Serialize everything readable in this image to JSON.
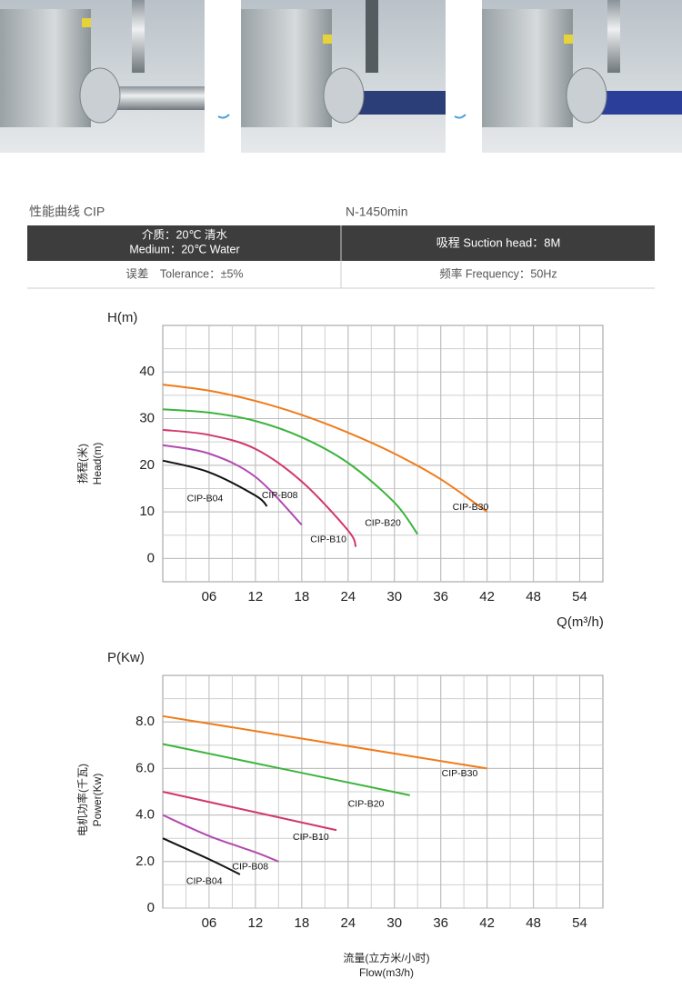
{
  "header": {
    "title": "性能曲线 CIP",
    "speed": "N-1450min"
  },
  "table": {
    "rows": [
      [
        [
          "介质：20℃ 清水",
          "Medium：20℃ Water"
        ],
        "吸程 Suction head：8M"
      ],
      [
        "误差　Tolerance：±5%",
        "频率 Frequency：50Hz"
      ]
    ]
  },
  "chart_data": [
    {
      "type": "line",
      "y_title": "H(m)",
      "y_label": [
        "扬程(米)",
        "Head(m)"
      ],
      "x_label": [
        "Q(m³/h)"
      ],
      "xlim": [
        0,
        57
      ],
      "ylim": [
        -5,
        50
      ],
      "xticks": [
        {
          "value": 6,
          "label": "06"
        },
        12,
        18,
        24,
        30,
        36,
        42,
        48,
        54
      ],
      "yticks": [
        0,
        10,
        20,
        30,
        40
      ],
      "grid": true,
      "series": [
        {
          "name": "CIP-B30",
          "color": "#f07b1a",
          "x": [
            0,
            6,
            12,
            18,
            24,
            30,
            36,
            42
          ],
          "values": [
            37.3,
            36,
            33.8,
            30.8,
            27,
            22.5,
            17,
            10
          ]
        },
        {
          "name": "CIP-B20",
          "color": "#3cb43c",
          "x": [
            0,
            6,
            12,
            18,
            24,
            30,
            33
          ],
          "values": [
            32,
            31.3,
            29.5,
            26,
            20.5,
            12,
            5.2
          ]
        },
        {
          "name": "CIP-B10",
          "color": "#d1386a",
          "x": [
            0,
            6,
            12,
            18,
            24,
            25
          ],
          "values": [
            27.6,
            26.5,
            23.5,
            16.5,
            6,
            2.5
          ]
        },
        {
          "name": "CIP-B08",
          "color": "#b04ab0",
          "x": [
            0,
            6,
            12,
            18
          ],
          "values": [
            24.3,
            22.5,
            17.5,
            7.2
          ]
        },
        {
          "name": "CIP-B04",
          "color": "#111111",
          "x": [
            0,
            6,
            12,
            13.5
          ],
          "values": [
            21,
            18.5,
            13.5,
            11.2
          ]
        }
      ]
    },
    {
      "type": "line",
      "y_title": "P(Kw)",
      "y_label": [
        "电机功率(千瓦)",
        "Power(Kw)"
      ],
      "x_label": [
        "流量(立方米/小时)",
        "Flow(m3/h)"
      ],
      "xlim": [
        0,
        57
      ],
      "ylim": [
        0,
        10
      ],
      "xticks": [
        {
          "value": 6,
          "label": "06"
        },
        12,
        18,
        24,
        30,
        36,
        42,
        48,
        54
      ],
      "yticks": [
        0,
        {
          "value": 2,
          "label": "2.0"
        },
        {
          "value": 4,
          "label": "4.0"
        },
        {
          "value": 6,
          "label": "6.0"
        },
        {
          "value": 8,
          "label": "8.0"
        }
      ],
      "grid": true,
      "series": [
        {
          "name": "CIP-B30",
          "color": "#f07b1a",
          "x": [
            0,
            42
          ],
          "values": [
            8.25,
            6
          ]
        },
        {
          "name": "CIP-B20",
          "color": "#3cb43c",
          "x": [
            0,
            32
          ],
          "values": [
            7.05,
            4.85
          ]
        },
        {
          "name": "CIP-B10",
          "color": "#d1386a",
          "x": [
            0,
            22.5
          ],
          "values": [
            5,
            3.35
          ]
        },
        {
          "name": "CIP-B08",
          "color": "#b04ab0",
          "x": [
            0,
            6,
            12,
            15
          ],
          "values": [
            4,
            3.1,
            2.4,
            2
          ]
        },
        {
          "name": "CIP-B04",
          "color": "#111111",
          "x": [
            0,
            6,
            10
          ],
          "values": [
            3,
            2.1,
            1.45
          ]
        }
      ]
    }
  ]
}
